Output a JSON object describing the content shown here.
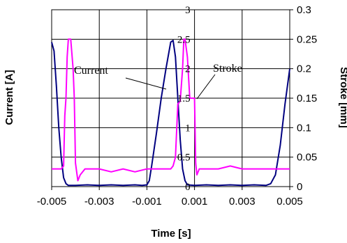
{
  "chart_data": {
    "type": "line",
    "title": "",
    "xlabel": "Time [s]",
    "ylabel_left": "Current [A]",
    "ylabel_right": "Stroke [mm]",
    "xlim": [
      -0.005,
      0.005
    ],
    "ylim_left": [
      0,
      3
    ],
    "ylim_right": [
      0,
      0.3
    ],
    "grid": true,
    "x_tick_labels": [
      "-0.005",
      "-0.003",
      "-0.001",
      "0.001",
      "0.003",
      "0.005"
    ],
    "y_left_tick_labels": [
      "0",
      "0.5",
      "1",
      "1.5",
      "2",
      "2.5",
      "3"
    ],
    "y_right_tick_labels": [
      "0",
      "0.05",
      "0.1",
      "0.15",
      "0.2",
      "0.25",
      "0.3"
    ],
    "annotations": [
      "Current",
      "Stroke"
    ],
    "colors": {
      "current": "#000080",
      "stroke": "#ff00ff",
      "grid": "#000000"
    },
    "series": [
      {
        "key": "current",
        "axis": "left",
        "x": [
          -0.005,
          -0.0049,
          -0.0048,
          -0.0047,
          -0.0046,
          -0.0045,
          -0.0044,
          -0.0043,
          -0.004,
          -0.0035,
          -0.003,
          -0.0025,
          -0.002,
          -0.0015,
          -0.0012,
          -0.001,
          -0.0009,
          -0.0008,
          -0.0006,
          -0.0004,
          -0.0002,
          0.0,
          0.0001,
          0.0002,
          0.0003,
          0.0004,
          0.0005,
          0.0006,
          0.0007,
          0.001,
          0.0015,
          0.002,
          0.0025,
          0.003,
          0.0035,
          0.004,
          0.0042,
          0.0044,
          0.0046,
          0.0048,
          0.005
        ],
        "values": [
          2.45,
          2.3,
          1.7,
          1.0,
          0.5,
          0.15,
          0.05,
          0.02,
          0.02,
          0.03,
          0.02,
          0.03,
          0.02,
          0.03,
          0.02,
          0.03,
          0.1,
          0.35,
          0.9,
          1.5,
          2.0,
          2.45,
          2.48,
          2.2,
          1.5,
          0.8,
          0.3,
          0.1,
          0.03,
          0.02,
          0.03,
          0.02,
          0.03,
          0.02,
          0.03,
          0.02,
          0.05,
          0.2,
          0.7,
          1.4,
          2.0
        ]
      },
      {
        "key": "stroke",
        "axis": "right",
        "x": [
          -0.005,
          -0.0048,
          -0.0046,
          -0.0045,
          -0.00445,
          -0.0044,
          -0.00435,
          -0.0043,
          -0.0042,
          -0.0041,
          -0.00405,
          -0.004,
          -0.0039,
          -0.0038,
          -0.0036,
          -0.003,
          -0.0025,
          -0.002,
          -0.0015,
          -0.001,
          -0.0005,
          0.0,
          0.0001,
          0.0002,
          0.0003,
          0.0004,
          0.0005,
          0.00055,
          0.0006,
          0.0007,
          0.0008,
          0.0009,
          0.001,
          0.00105,
          0.0011,
          0.0012,
          0.0015,
          0.002,
          0.0025,
          0.003,
          0.0035,
          0.004,
          0.0045,
          0.005
        ],
        "values": [
          0.03,
          0.03,
          0.03,
          0.035,
          0.12,
          0.15,
          0.22,
          0.25,
          0.25,
          0.2,
          0.15,
          0.04,
          0.01,
          0.02,
          0.03,
          0.03,
          0.025,
          0.03,
          0.025,
          0.03,
          0.03,
          0.03,
          0.035,
          0.05,
          0.14,
          0.145,
          0.2,
          0.25,
          0.25,
          0.22,
          0.15,
          0.15,
          0.15,
          0.04,
          0.02,
          0.03,
          0.03,
          0.03,
          0.035,
          0.03,
          0.03,
          0.03,
          0.03,
          0.03
        ]
      }
    ]
  }
}
